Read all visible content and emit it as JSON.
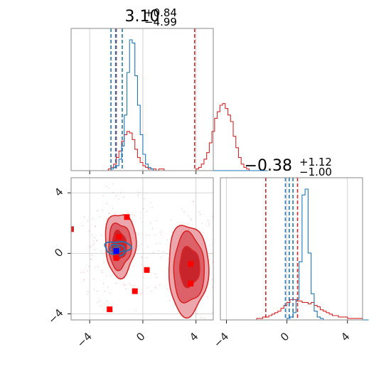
{
  "chart_data": [
    {
      "type": "histogram",
      "panel": "top-left",
      "title": {
        "base": "3.10",
        "upper": "+0.84",
        "lower": "−4.99"
      },
      "xlim": [
        -5.4,
        5.3
      ],
      "bins_start": -5.4,
      "bin_width": 0.2,
      "series": [
        {
          "name": "",
          "color": "#d62728",
          "counts": [
            0,
            0,
            0,
            0,
            0,
            0,
            0,
            0,
            0,
            0,
            0,
            0,
            0,
            0,
            1,
            2,
            4,
            8,
            12,
            18,
            22,
            24,
            23,
            19,
            13,
            8,
            5,
            3,
            2,
            1,
            1,
            1,
            0,
            1,
            1,
            0,
            0,
            0,
            0,
            0,
            0,
            0,
            0,
            0,
            0,
            0,
            0,
            1,
            2,
            4,
            7,
            11,
            17,
            24,
            32,
            36,
            40,
            41,
            38,
            34,
            30,
            21,
            14,
            8,
            4,
            2,
            1,
            0,
            0,
            0,
            0,
            0,
            0,
            0
          ],
          "lines": [
            -2.0,
            3.9
          ]
        },
        {
          "name": "",
          "color": "#1f77b4",
          "counts": [
            0,
            0,
            0,
            0,
            0,
            0,
            0,
            0,
            0,
            0,
            0,
            0,
            0,
            0,
            0,
            1,
            2,
            3,
            7,
            15,
            34,
            60,
            80,
            78,
            58,
            40,
            22,
            10,
            4,
            2,
            1,
            0,
            0,
            0,
            0,
            0,
            0,
            0,
            0,
            0,
            0,
            0,
            0,
            0,
            0,
            0,
            0,
            0,
            0,
            0,
            0,
            0,
            0,
            0,
            0,
            0,
            0,
            0,
            0,
            0,
            0,
            0,
            0,
            0,
            0,
            0,
            0,
            0,
            0,
            0,
            0,
            0,
            0,
            0
          ],
          "lines": [
            -2.4,
            -2.05,
            -1.55
          ]
        }
      ],
      "x_ticks": [
        -4,
        0,
        4
      ]
    },
    {
      "type": "contour",
      "panel": "bottom-left",
      "xlim": [
        -5.4,
        5.3
      ],
      "ylim": [
        -4.4,
        5.0
      ],
      "x_ticks": [
        -4,
        0,
        4
      ],
      "y_ticks": [
        4,
        0,
        -4
      ],
      "x_tick_labels": [
        "−4",
        "0",
        "4"
      ],
      "y_tick_labels": [
        "4",
        "0",
        "−4"
      ],
      "markers_red": [
        [
          -1.2,
          2.4
        ],
        [
          -1.8,
          1.1
        ],
        [
          -2.0,
          -0.3
        ],
        [
          0.3,
          -1.1
        ],
        [
          -0.6,
          -2.5
        ],
        [
          -2.5,
          -3.7
        ],
        [
          3.6,
          -0.7
        ],
        [
          3.6,
          -2.0
        ]
      ],
      "marker_blue": [
        -2.0,
        0.15
      ],
      "colors": {
        "red": "#d62728",
        "blue": "#1f77b4",
        "fill_light": "#eba7ab",
        "fill_mid": "#dc6168",
        "fill_dark": "#c8242c"
      }
    },
    {
      "type": "histogram",
      "panel": "bottom-right",
      "title": {
        "base": "−0.38",
        "upper": "+1.12",
        "lower": "−1.00"
      },
      "xlim": [
        -4.4,
        5.0
      ],
      "bins_start": -4.4,
      "bin_width": 0.2,
      "series": [
        {
          "name": "",
          "color": "#d62728",
          "counts": [
            0,
            0,
            0,
            0,
            0,
            0,
            0,
            0,
            0,
            0,
            0,
            0,
            1,
            1,
            2,
            2,
            3,
            4,
            5,
            6,
            8,
            10,
            12,
            14,
            14,
            13,
            13,
            12,
            12,
            11,
            12,
            10,
            9,
            7,
            6,
            5,
            4,
            3,
            3,
            2,
            2,
            2,
            1,
            1,
            1,
            1,
            1,
            0,
            0
          ],
          "lines": [
            -1.4,
            0.7
          ]
        },
        {
          "name": "",
          "color": "#1f77b4",
          "counts": [
            0,
            0,
            0,
            0,
            0,
            0,
            0,
            0,
            0,
            0,
            0,
            0,
            0,
            0,
            0,
            0,
            0,
            0,
            0,
            0,
            0,
            0,
            1,
            2,
            5,
            14,
            40,
            86,
            90,
            46,
            18,
            6,
            2,
            1,
            0,
            0,
            0,
            0,
            0,
            0,
            0,
            0,
            0,
            0,
            0,
            0,
            0,
            0,
            0
          ],
          "lines": [
            -0.1,
            0.15,
            0.4
          ]
        }
      ],
      "x_ticks": [
        -4,
        0,
        4
      ],
      "x_tick_labels": [
        "−4",
        "0",
        "4"
      ]
    }
  ]
}
